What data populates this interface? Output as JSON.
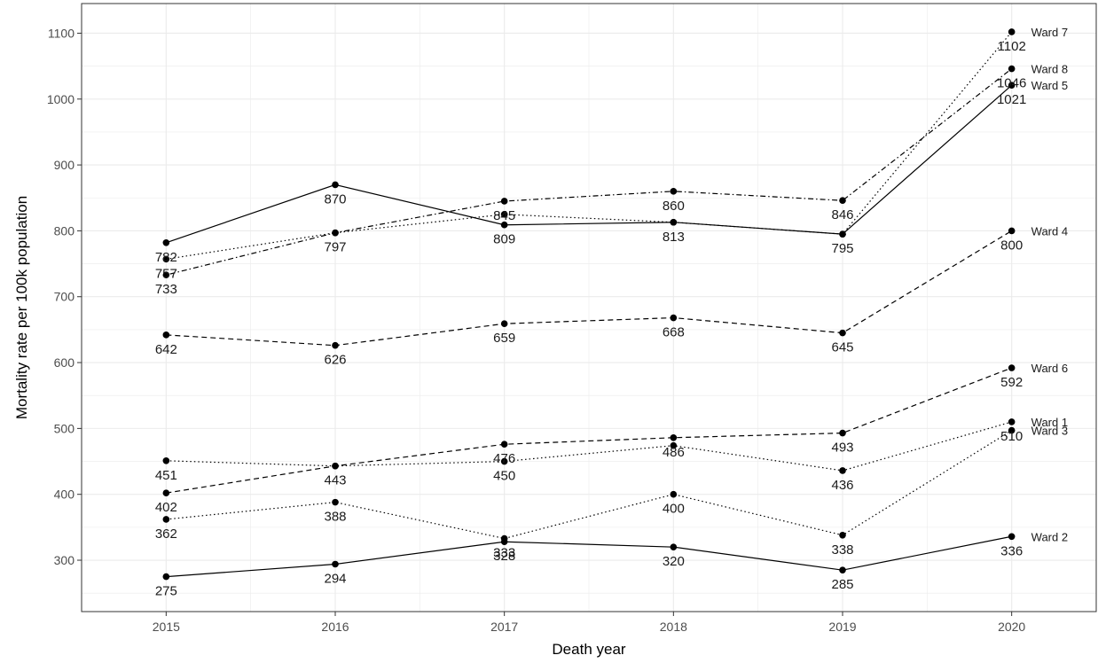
{
  "chart_data": {
    "type": "line",
    "xlabel": "Death year",
    "ylabel": "Mortality rate per 100k population",
    "x": [
      2015,
      2016,
      2017,
      2018,
      2019,
      2020
    ],
    "x_ticks": [
      "2015",
      "2016",
      "2017",
      "2018",
      "2019",
      "2020"
    ],
    "xlim": [
      2014.5,
      2020.5
    ],
    "ylim": [
      222,
      1145
    ],
    "y_ticks": [
      300,
      400,
      500,
      600,
      700,
      800,
      900,
      1000,
      1100
    ],
    "y_tick_labels": [
      "300",
      "400",
      "500",
      "600",
      "700",
      "800",
      "900",
      "1000",
      "1100"
    ],
    "grid": true,
    "legend": "none",
    "series": [
      {
        "name": "Ward 7",
        "linetype": "dotted",
        "values": [
          757,
          797,
          825,
          813,
          795,
          1102
        ],
        "labels": [
          "757",
          "797",
          "825",
          "813",
          "795",
          "1102"
        ]
      },
      {
        "name": "Ward 8",
        "linetype": "dotdash",
        "values": [
          733,
          797,
          845,
          860,
          846,
          1046
        ],
        "labels": [
          "733",
          "797",
          "845",
          "860",
          "846",
          "1046"
        ]
      },
      {
        "name": "Ward 5",
        "linetype": "solid",
        "values": [
          782,
          870,
          809,
          813,
          795,
          1021
        ],
        "labels": [
          "782",
          "870",
          "809",
          "813",
          "795",
          "1021"
        ]
      },
      {
        "name": "Ward 4",
        "linetype": "dashed",
        "values": [
          642,
          626,
          659,
          668,
          645,
          800
        ],
        "labels": [
          "642",
          "626",
          "659",
          "668",
          "645",
          "800"
        ]
      },
      {
        "name": "Ward 6",
        "linetype": "dashed",
        "values": [
          402,
          443,
          476,
          486,
          493,
          592
        ],
        "labels": [
          "402",
          "443",
          "476",
          "486",
          "493",
          "592"
        ]
      },
      {
        "name": "Ward 1",
        "linetype": "dotted",
        "values": [
          451,
          443,
          450,
          474,
          436,
          510
        ],
        "labels": [
          "451",
          "443",
          "450",
          "474",
          "436",
          "510"
        ]
      },
      {
        "name": "Ward 3",
        "linetype": "dotted",
        "values": [
          362,
          388,
          333,
          400,
          338,
          497
        ],
        "labels": [
          "362",
          "388",
          "333",
          "400",
          "338",
          "497"
        ]
      },
      {
        "name": "Ward 2",
        "linetype": "solid",
        "values": [
          275,
          294,
          328,
          320,
          285,
          336
        ],
        "labels": [
          "275",
          "294",
          "328",
          "320",
          "285",
          "336"
        ]
      }
    ],
    "visible_value_labels": [
      {
        "series": "Ward 7",
        "index": 0
      },
      {
        "series": "Ward 7",
        "index": 1
      },
      {
        "series": "Ward 7",
        "index": 5
      },
      {
        "series": "Ward 8",
        "index": 0
      },
      {
        "series": "Ward 8",
        "index": 2
      },
      {
        "series": "Ward 8",
        "index": 3
      },
      {
        "series": "Ward 8",
        "index": 4
      },
      {
        "series": "Ward 8",
        "index": 5
      },
      {
        "series": "Ward 5",
        "index": 0
      },
      {
        "series": "Ward 5",
        "index": 1
      },
      {
        "series": "Ward 5",
        "index": 2
      },
      {
        "series": "Ward 5",
        "index": 3
      },
      {
        "series": "Ward 5",
        "index": 4
      },
      {
        "series": "Ward 5",
        "index": 5
      },
      {
        "series": "Ward 4",
        "index": 0
      },
      {
        "series": "Ward 4",
        "index": 1
      },
      {
        "series": "Ward 4",
        "index": 2
      },
      {
        "series": "Ward 4",
        "index": 3
      },
      {
        "series": "Ward 4",
        "index": 4
      },
      {
        "series": "Ward 4",
        "index": 5
      },
      {
        "series": "Ward 6",
        "index": 0
      },
      {
        "series": "Ward 6",
        "index": 1
      },
      {
        "series": "Ward 6",
        "index": 2
      },
      {
        "series": "Ward 6",
        "index": 3
      },
      {
        "series": "Ward 6",
        "index": 4
      },
      {
        "series": "Ward 6",
        "index": 5
      },
      {
        "series": "Ward 1",
        "index": 0
      },
      {
        "series": "Ward 1",
        "index": 2
      },
      {
        "series": "Ward 1",
        "index": 4
      },
      {
        "series": "Ward 1",
        "index": 5
      },
      {
        "series": "Ward 3",
        "index": 0
      },
      {
        "series": "Ward 3",
        "index": 1
      },
      {
        "series": "Ward 3",
        "index": 2
      },
      {
        "series": "Ward 3",
        "index": 3
      },
      {
        "series": "Ward 3",
        "index": 4
      },
      {
        "series": "Ward 2",
        "index": 0
      },
      {
        "series": "Ward 2",
        "index": 1
      },
      {
        "series": "Ward 2",
        "index": 2
      },
      {
        "series": "Ward 2",
        "index": 3
      },
      {
        "series": "Ward 2",
        "index": 4
      },
      {
        "series": "Ward 2",
        "index": 5
      }
    ],
    "line_color": "#000000",
    "grid_color": "#ebebeb",
    "panel_border_color": "#333333"
  }
}
